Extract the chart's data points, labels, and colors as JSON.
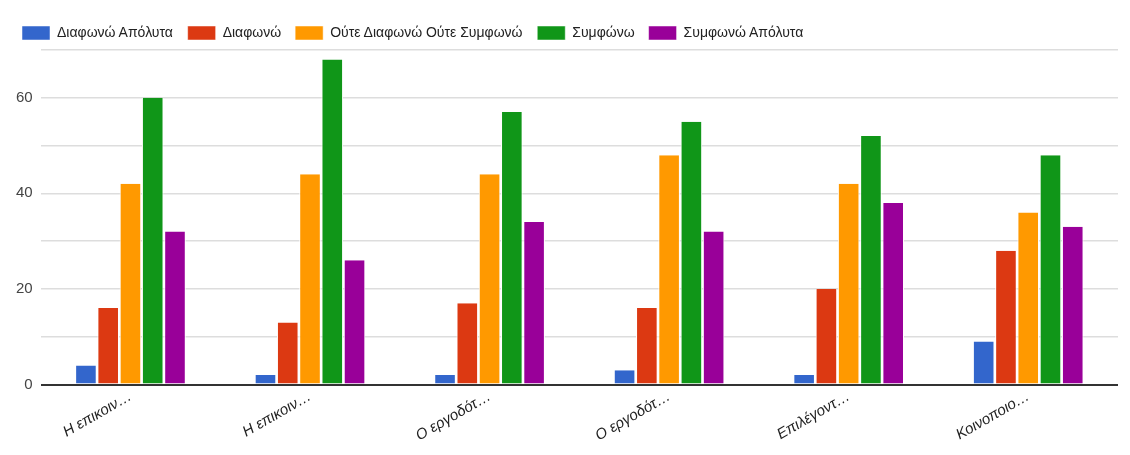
{
  "chart_data": {
    "type": "bar",
    "categories": [
      "Η επικοιν…",
      "Η επικοιν…",
      "Ο εργοδότ…",
      "Ο εργοδότ…",
      "Επιλέγοντ…",
      "Κοινοποιο…"
    ],
    "series": [
      {
        "name": "Διαφωνώ Απόλυτα",
        "color": "#3366cc",
        "values": [
          4,
          2,
          2,
          3,
          2,
          9
        ]
      },
      {
        "name": "Διαφωνώ",
        "color": "#dc3912",
        "values": [
          16,
          13,
          17,
          16,
          20,
          28
        ]
      },
      {
        "name": "Ούτε Διαφωνώ Ούτε Συμφωνώ",
        "color": "#ff9900",
        "values": [
          42,
          44,
          44,
          48,
          42,
          36
        ]
      },
      {
        "name": "Συμφώνω",
        "color": "#109618",
        "values": [
          60,
          68,
          57,
          55,
          52,
          48
        ]
      },
      {
        "name": "Συμφωνώ Απόλυτα",
        "color": "#990099",
        "values": [
          32,
          26,
          34,
          32,
          38,
          33
        ]
      }
    ],
    "ylim": [
      0,
      70
    ],
    "yticks": [
      0,
      {
        "value": 10,
        "label": null
      },
      20,
      {
        "value": 30,
        "label": null
      },
      40,
      {
        "value": 50,
        "label": null
      },
      60,
      {
        "value": 70,
        "label": null
      }
    ],
    "grid": true,
    "legend": "top left"
  }
}
